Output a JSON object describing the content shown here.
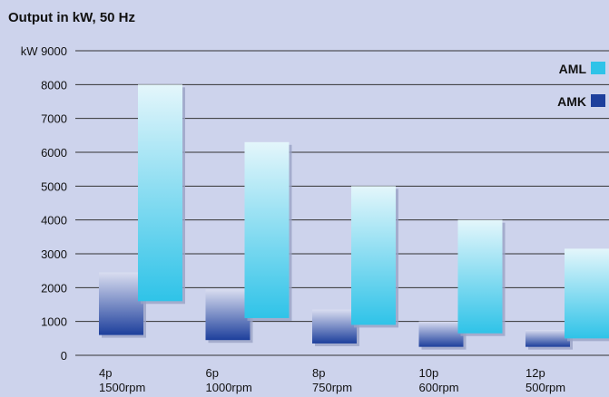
{
  "chart_data": {
    "type": "bar",
    "title": "Output in kW, 50 Hz",
    "ylabel_unit": "kW",
    "ylim": [
      0,
      9000
    ],
    "yticks": [
      0,
      1000,
      2000,
      3000,
      4000,
      5000,
      6000,
      7000,
      8000,
      9000
    ],
    "categories": [
      {
        "line1": "4p",
        "line2": "1500rpm"
      },
      {
        "line1": "6p",
        "line2": "1000rpm"
      },
      {
        "line1": "8p",
        "line2": "750rpm"
      },
      {
        "line1": "10p",
        "line2": "600rpm"
      },
      {
        "line1": "12p",
        "line2": "500rpm"
      }
    ],
    "series": [
      {
        "name": "AMK",
        "color": "#1d3f9c",
        "ranges": [
          [
            600,
            2450
          ],
          [
            450,
            1950
          ],
          [
            350,
            1350
          ],
          [
            250,
            1000
          ],
          [
            250,
            750
          ]
        ]
      },
      {
        "name": "AML",
        "color": "#2fc3e8",
        "ranges": [
          [
            1600,
            8000
          ],
          [
            1100,
            6300
          ],
          [
            900,
            5000
          ],
          [
            650,
            4000
          ],
          [
            500,
            3150
          ]
        ]
      }
    ],
    "legend": {
      "position": "top-right",
      "order": [
        "AML",
        "AMK"
      ]
    },
    "grid": true
  }
}
